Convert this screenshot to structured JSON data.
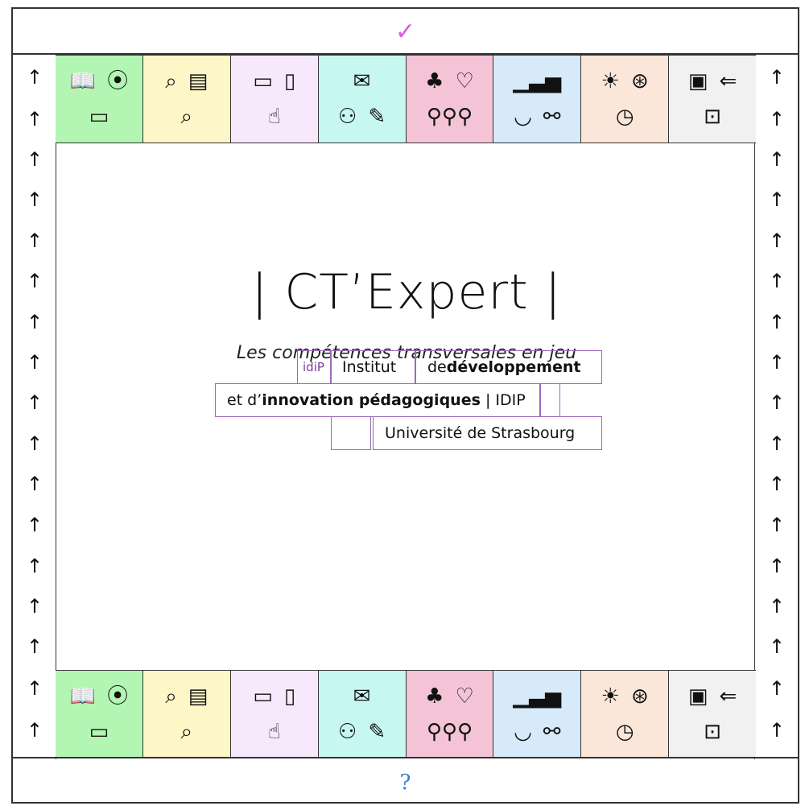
{
  "top_bar": {
    "icon": "checkmark-icon",
    "glyph": "✓"
  },
  "bottom_bar": {
    "icon": "question-icon",
    "glyph": "?"
  },
  "arrow_glyph": "↑",
  "title": "CT’Expert",
  "subtitle": "Les compétences transversales en jeu",
  "logo": {
    "mark": "idiP",
    "institut": "Institut",
    "de": "de ",
    "developpement": "développement",
    "et": "et d’",
    "innovation": "innovation pédagogiques",
    "idip": "| IDIP",
    "universite": "Université de Strasbourg",
    "color": "#9b6ab8"
  },
  "tiles": [
    {
      "color": "#b3f5b3",
      "row1": [
        {
          "name": "open-book-icon",
          "g": "📖"
        },
        {
          "name": "location-pin-icon",
          "g": "⦿"
        }
      ],
      "row2": [
        {
          "name": "id-card-icon",
          "g": "▭"
        }
      ]
    },
    {
      "color": "#fdf6c6",
      "row1": [
        {
          "name": "search-card-icon",
          "g": "⌕"
        },
        {
          "name": "document-pencil-icon",
          "g": "▤"
        }
      ],
      "row2": [
        {
          "name": "search-book-icon",
          "g": "⌕"
        }
      ]
    },
    {
      "color": "#f7e9fb",
      "row1": [
        {
          "name": "monitor-icon",
          "g": "▭"
        },
        {
          "name": "tablet-icon",
          "g": "▯"
        }
      ],
      "row2": [
        {
          "name": "touch-screen-icon",
          "g": "☝"
        }
      ]
    },
    {
      "color": "#c6f8f1",
      "row1": [
        {
          "name": "chat-bubbles-icon",
          "g": "✉"
        }
      ],
      "row2": [
        {
          "name": "team-meeting-icon",
          "g": "⚇"
        },
        {
          "name": "document-edit-icon",
          "g": "✎"
        }
      ]
    },
    {
      "color": "#f4c4d6",
      "row1": [
        {
          "name": "plant-icon",
          "g": "♣"
        },
        {
          "name": "heart-icon",
          "g": "♡"
        }
      ],
      "row2": [
        {
          "name": "people-group-icon",
          "g": "⚲⚲⚲"
        }
      ]
    },
    {
      "color": "#d6eafa",
      "row1": [
        {
          "name": "bar-chart-icon",
          "g": "▁▃▅"
        }
      ],
      "row2": [
        {
          "name": "beaker-icon",
          "g": "◡"
        },
        {
          "name": "network-nodes-icon",
          "g": "⚯"
        }
      ]
    },
    {
      "color": "#fbe6da",
      "row1": [
        {
          "name": "lightbulb-icon",
          "g": "☀"
        },
        {
          "name": "compass-icon",
          "g": "⊛"
        }
      ],
      "row2": [
        {
          "name": "clock-icon",
          "g": "◷"
        }
      ]
    },
    {
      "color": "#f1f1f1",
      "row1": [
        {
          "name": "certificate-icon",
          "g": "▣"
        },
        {
          "name": "person-return-icon",
          "g": "⇐"
        }
      ],
      "row2": [
        {
          "name": "briefcase-icon",
          "g": "⊡"
        }
      ]
    }
  ]
}
